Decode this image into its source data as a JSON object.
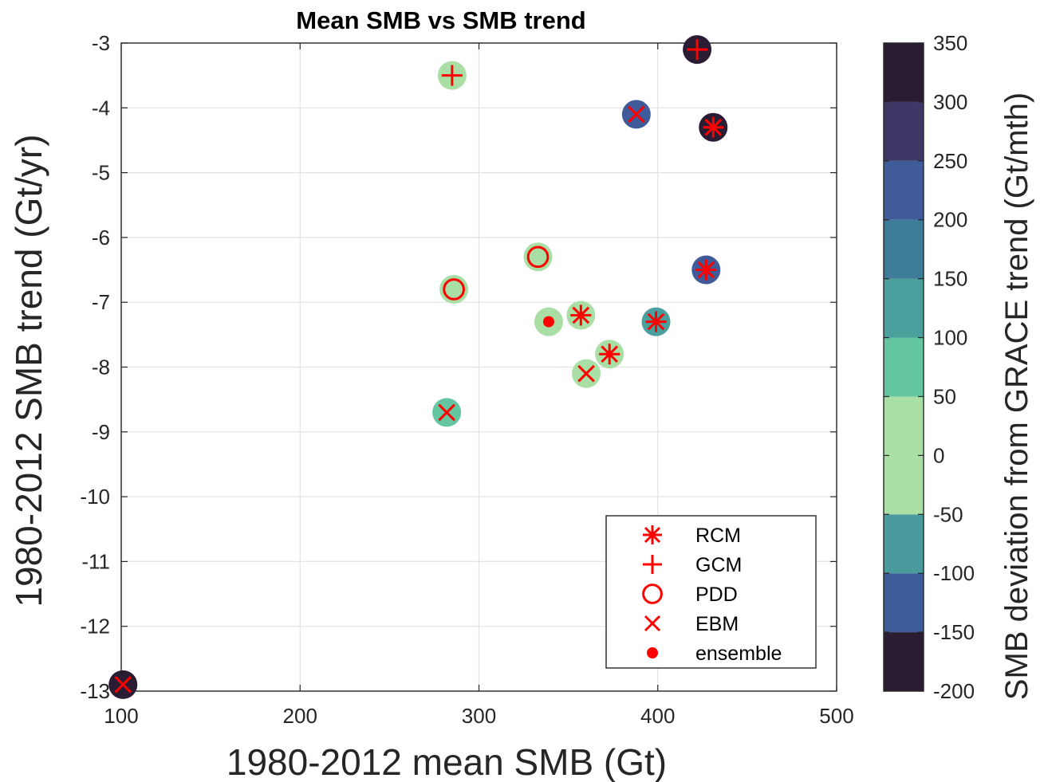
{
  "chart_data": {
    "type": "scatter",
    "title": "Mean SMB vs SMB trend",
    "xlabel": "1980-2012 mean SMB (Gt)",
    "ylabel": "1980-2012 SMB trend (Gt/yr)",
    "xlim": [
      100,
      500
    ],
    "ylim": [
      -13,
      -3
    ],
    "xticks": [
      "100",
      "200",
      "300",
      "400",
      "500"
    ],
    "yticks": [
      "-3",
      "-4",
      "-5",
      "-6",
      "-7",
      "-8",
      "-9",
      "-10",
      "-11",
      "-12",
      "-13"
    ],
    "grid": true,
    "legend_position": "lower-right",
    "marker_color": "#ff0000",
    "legend": [
      {
        "marker": "asterisk",
        "label": "RCM"
      },
      {
        "marker": "plus",
        "label": "GCM"
      },
      {
        "marker": "circle",
        "label": "PDD"
      },
      {
        "marker": "x",
        "label": "EBM"
      },
      {
        "marker": "dot",
        "label": "ensemble"
      }
    ],
    "colorbar": {
      "label": "SMB deviation from GRACE  trend (Gt/mth)",
      "range": [
        -200,
        350
      ],
      "ticks": [
        "350",
        "300",
        "250",
        "200",
        "150",
        "100",
        "50",
        "0",
        "-50",
        "-100",
        "-150",
        "-200"
      ],
      "bands": [
        {
          "from": -200,
          "to": -150,
          "color": "#2a1d33"
        },
        {
          "from": -150,
          "to": -100,
          "color": "#3d5a99"
        },
        {
          "from": -100,
          "to": -50,
          "color": "#4a9b9e"
        },
        {
          "from": -50,
          "to": 50,
          "color": "#a9dfa5"
        },
        {
          "from": 50,
          "to": 100,
          "color": "#63c6a0"
        },
        {
          "from": 100,
          "to": 150,
          "color": "#4b9f9d"
        },
        {
          "from": 150,
          "to": 200,
          "color": "#3e7b98"
        },
        {
          "from": 200,
          "to": 250,
          "color": "#3f5b99"
        },
        {
          "from": 250,
          "to": 300,
          "color": "#3d3866"
        },
        {
          "from": 300,
          "to": 350,
          "color": "#2a1d33"
        }
      ]
    },
    "points": [
      {
        "type": "GCM",
        "x": 422,
        "y": -3.1,
        "deviation": 325
      },
      {
        "type": "GCM",
        "x": 285,
        "y": -3.5,
        "deviation": 0
      },
      {
        "type": "EBM",
        "x": 388,
        "y": -4.1,
        "deviation": 225
      },
      {
        "type": "RCM",
        "x": 431,
        "y": -4.3,
        "deviation": 325
      },
      {
        "type": "PDD",
        "x": 333,
        "y": -6.3,
        "deviation": 0
      },
      {
        "type": "RCM",
        "x": 427,
        "y": -6.5,
        "deviation": 225
      },
      {
        "type": "PDD",
        "x": 286,
        "y": -6.8,
        "deviation": 0
      },
      {
        "type": "RCM",
        "x": 357,
        "y": -7.2,
        "deviation": 0
      },
      {
        "type": "ensemble",
        "x": 339,
        "y": -7.3,
        "deviation": 0
      },
      {
        "type": "RCM",
        "x": 399,
        "y": -7.3,
        "deviation": 125
      },
      {
        "type": "RCM",
        "x": 373,
        "y": -7.8,
        "deviation": 0
      },
      {
        "type": "EBM",
        "x": 360,
        "y": -8.1,
        "deviation": 0
      },
      {
        "type": "EBM",
        "x": 282,
        "y": -8.7,
        "deviation": 75
      },
      {
        "type": "EBM",
        "x": 101,
        "y": -12.9,
        "deviation": -175
      }
    ]
  }
}
